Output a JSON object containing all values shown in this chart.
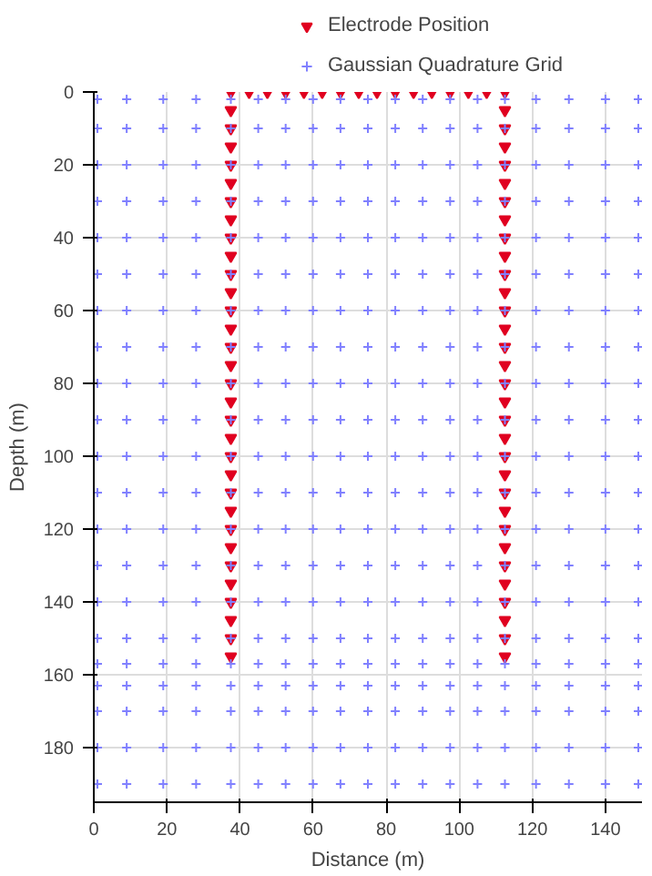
{
  "chart_data": {
    "type": "scatter",
    "xlabel": "Distance (m)",
    "ylabel": "Depth (m)",
    "xlim": [
      0,
      150
    ],
    "xticks": [
      0,
      20,
      40,
      60,
      80,
      100,
      120,
      140
    ],
    "ylim": [
      195,
      0
    ],
    "yticks": [
      0,
      20,
      40,
      60,
      80,
      100,
      120,
      140,
      160,
      180
    ],
    "grid": true,
    "legend": "top",
    "series": [
      {
        "name": "Gaussian Quadrature Grid",
        "color": "#8080ff",
        "marker": "cross",
        "x": [
          1,
          9,
          19,
          28,
          37.5,
          45,
          52.5,
          60,
          67.5,
          75,
          82.5,
          90,
          97.5,
          105,
          112.5,
          121,
          130,
          140,
          149,
          1,
          9,
          19,
          28,
          37.5,
          45,
          52.5,
          60,
          67.5,
          75,
          82.5,
          90,
          97.5,
          105,
          112.5,
          121,
          130,
          140,
          149,
          1,
          9,
          19,
          28,
          37.5,
          45,
          52.5,
          60,
          67.5,
          75,
          82.5,
          90,
          97.5,
          105,
          112.5,
          121,
          130,
          140,
          149,
          1,
          9,
          19,
          28,
          37.5,
          45,
          52.5,
          60,
          67.5,
          75,
          82.5,
          90,
          97.5,
          105,
          112.5,
          121,
          130,
          140,
          149,
          1,
          9,
          19,
          28,
          37.5,
          45,
          52.5,
          60,
          67.5,
          75,
          82.5,
          90,
          97.5,
          105,
          112.5,
          121,
          130,
          140,
          149,
          1,
          9,
          19,
          28,
          37.5,
          45,
          52.5,
          60,
          67.5,
          75,
          82.5,
          90,
          97.5,
          105,
          112.5,
          121,
          130,
          140,
          149,
          1,
          9,
          19,
          28,
          37.5,
          45,
          52.5,
          60,
          67.5,
          75,
          82.5,
          90,
          97.5,
          105,
          112.5,
          121,
          130,
          140,
          149,
          1,
          9,
          19,
          28,
          37.5,
          45,
          52.5,
          60,
          67.5,
          75,
          82.5,
          90,
          97.5,
          105,
          112.5,
          121,
          130,
          140,
          149,
          1,
          9,
          19,
          28,
          37.5,
          45,
          52.5,
          60,
          67.5,
          75,
          82.5,
          90,
          97.5,
          105,
          112.5,
          121,
          130,
          140,
          149,
          1,
          9,
          19,
          28,
          37.5,
          45,
          52.5,
          60,
          67.5,
          75,
          82.5,
          90,
          97.5,
          105,
          112.5,
          121,
          130,
          140,
          149,
          1,
          9,
          19,
          28,
          37.5,
          45,
          52.5,
          60,
          67.5,
          75,
          82.5,
          90,
          97.5,
          105,
          112.5,
          121,
          130,
          140,
          149,
          1,
          9,
          19,
          28,
          37.5,
          45,
          52.5,
          60,
          67.5,
          75,
          82.5,
          90,
          97.5,
          105,
          112.5,
          121,
          130,
          140,
          149,
          1,
          9,
          19,
          28,
          37.5,
          45,
          52.5,
          60,
          67.5,
          75,
          82.5,
          90,
          97.5,
          105,
          112.5,
          121,
          130,
          140,
          149,
          1,
          9,
          19,
          28,
          37.5,
          45,
          52.5,
          60,
          67.5,
          75,
          82.5,
          90,
          97.5,
          105,
          112.5,
          121,
          130,
          140,
          149,
          1,
          9,
          19,
          28,
          37.5,
          45,
          52.5,
          60,
          67.5,
          75,
          82.5,
          90,
          97.5,
          105,
          112.5,
          121,
          130,
          140,
          149,
          1,
          9,
          19,
          28,
          37.5,
          45,
          52.5,
          60,
          67.5,
          75,
          82.5,
          90,
          97.5,
          105,
          112.5,
          121,
          130,
          140,
          149,
          1,
          9,
          19,
          28,
          37.5,
          45,
          52.5,
          60,
          67.5,
          75,
          82.5,
          90,
          97.5,
          105,
          112.5,
          121,
          130,
          140,
          149,
          1,
          9,
          19,
          28,
          37.5,
          45,
          52.5,
          60,
          67.5,
          75,
          82.5,
          90,
          97.5,
          105,
          112.5,
          121,
          130,
          140,
          149,
          1,
          9,
          19,
          28,
          37.5,
          45,
          52.5,
          60,
          67.5,
          75,
          82.5,
          90,
          97.5,
          105,
          112.5,
          121,
          130,
          140,
          149,
          1,
          9,
          19,
          28,
          37.5,
          45,
          52.5,
          60,
          67.5,
          75,
          82.5,
          90,
          97.5,
          105,
          112.5,
          121,
          130,
          140,
          149,
          1,
          9,
          19,
          28,
          37.5,
          45,
          52.5,
          60,
          67.5,
          75,
          82.5,
          90,
          97.5,
          105,
          112.5,
          121,
          130,
          140,
          149
        ],
        "values": [
          2,
          2,
          2,
          2,
          2,
          2,
          2,
          2,
          2,
          2,
          2,
          2,
          2,
          2,
          2,
          2,
          2,
          2,
          2,
          10,
          10,
          10,
          10,
          10,
          10,
          10,
          10,
          10,
          10,
          10,
          10,
          10,
          10,
          10,
          10,
          10,
          10,
          10,
          20,
          20,
          20,
          20,
          20,
          20,
          20,
          20,
          20,
          20,
          20,
          20,
          20,
          20,
          20,
          20,
          20,
          20,
          20,
          30,
          30,
          30,
          30,
          30,
          30,
          30,
          30,
          30,
          30,
          30,
          30,
          30,
          30,
          30,
          30,
          30,
          30,
          30,
          40,
          40,
          40,
          40,
          40,
          40,
          40,
          40,
          40,
          40,
          40,
          40,
          40,
          40,
          40,
          40,
          40,
          40,
          40,
          50,
          50,
          50,
          50,
          50,
          50,
          50,
          50,
          50,
          50,
          50,
          50,
          50,
          50,
          50,
          50,
          50,
          50,
          50,
          60,
          60,
          60,
          60,
          60,
          60,
          60,
          60,
          60,
          60,
          60,
          60,
          60,
          60,
          60,
          60,
          60,
          60,
          60,
          70,
          70,
          70,
          70,
          70,
          70,
          70,
          70,
          70,
          70,
          70,
          70,
          70,
          70,
          70,
          70,
          70,
          70,
          70,
          80,
          80,
          80,
          80,
          80,
          80,
          80,
          80,
          80,
          80,
          80,
          80,
          80,
          80,
          80,
          80,
          80,
          80,
          80,
          90,
          90,
          90,
          90,
          90,
          90,
          90,
          90,
          90,
          90,
          90,
          90,
          90,
          90,
          90,
          90,
          90,
          90,
          90,
          100,
          100,
          100,
          100,
          100,
          100,
          100,
          100,
          100,
          100,
          100,
          100,
          100,
          100,
          100,
          100,
          100,
          100,
          100,
          110,
          110,
          110,
          110,
          110,
          110,
          110,
          110,
          110,
          110,
          110,
          110,
          110,
          110,
          110,
          110,
          110,
          110,
          110,
          120,
          120,
          120,
          120,
          120,
          120,
          120,
          120,
          120,
          120,
          120,
          120,
          120,
          120,
          120,
          120,
          120,
          120,
          120,
          130,
          130,
          130,
          130,
          130,
          130,
          130,
          130,
          130,
          130,
          130,
          130,
          130,
          130,
          130,
          130,
          130,
          130,
          130,
          140,
          140,
          140,
          140,
          140,
          140,
          140,
          140,
          140,
          140,
          140,
          140,
          140,
          140,
          140,
          140,
          140,
          140,
          140,
          150,
          150,
          150,
          150,
          150,
          150,
          150,
          150,
          150,
          150,
          150,
          150,
          150,
          150,
          150,
          150,
          150,
          150,
          150,
          157,
          157,
          157,
          157,
          157,
          157,
          157,
          157,
          157,
          157,
          157,
          157,
          157,
          157,
          157,
          157,
          157,
          157,
          157,
          163,
          163,
          163,
          163,
          163,
          163,
          163,
          163,
          163,
          163,
          163,
          163,
          163,
          163,
          163,
          163,
          163,
          163,
          163,
          170,
          170,
          170,
          170,
          170,
          170,
          170,
          170,
          170,
          170,
          170,
          170,
          170,
          170,
          170,
          170,
          170,
          170,
          170,
          180,
          180,
          180,
          180,
          180,
          180,
          180,
          180,
          180,
          180,
          180,
          180,
          180,
          180,
          180,
          180,
          180,
          180,
          180,
          190,
          190,
          190,
          190,
          190,
          190,
          190,
          190,
          190,
          190,
          190,
          190,
          190,
          190,
          190,
          190,
          190,
          190,
          190
        ]
      },
      {
        "name": "Electrode Position",
        "color": "#e00020",
        "marker": "triangle",
        "x": [
          37.5,
          42.5,
          47.5,
          52.5,
          57.5,
          62.5,
          67.5,
          72.5,
          77.5,
          82.5,
          87.5,
          92.5,
          97.5,
          102.5,
          107.5,
          112.5,
          37.5,
          37.5,
          37.5,
          37.5,
          37.5,
          37.5,
          37.5,
          37.5,
          37.5,
          37.5,
          37.5,
          37.5,
          37.5,
          37.5,
          37.5,
          37.5,
          37.5,
          37.5,
          37.5,
          37.5,
          37.5,
          37.5,
          37.5,
          37.5,
          37.5,
          37.5,
          37.5,
          37.5,
          37.5,
          37.5,
          37.5,
          112.5,
          112.5,
          112.5,
          112.5,
          112.5,
          112.5,
          112.5,
          112.5,
          112.5,
          112.5,
          112.5,
          112.5,
          112.5,
          112.5,
          112.5,
          112.5,
          112.5,
          112.5,
          112.5,
          112.5,
          112.5,
          112.5,
          112.5,
          112.5,
          112.5,
          112.5,
          112.5,
          112.5,
          112.5,
          112.5,
          112.5
        ],
        "values": [
          0,
          0,
          0,
          0,
          0,
          0,
          0,
          0,
          0,
          0,
          0,
          0,
          0,
          0,
          0,
          0,
          5,
          10,
          15,
          20,
          25,
          30,
          35,
          40,
          45,
          50,
          55,
          60,
          65,
          70,
          75,
          80,
          85,
          90,
          95,
          100,
          105,
          110,
          115,
          120,
          125,
          130,
          135,
          140,
          145,
          150,
          155,
          5,
          10,
          15,
          20,
          25,
          30,
          35,
          40,
          45,
          50,
          55,
          60,
          65,
          70,
          75,
          80,
          85,
          90,
          95,
          100,
          105,
          110,
          115,
          120,
          125,
          130,
          135,
          140,
          145,
          150,
          155
        ]
      }
    ]
  }
}
